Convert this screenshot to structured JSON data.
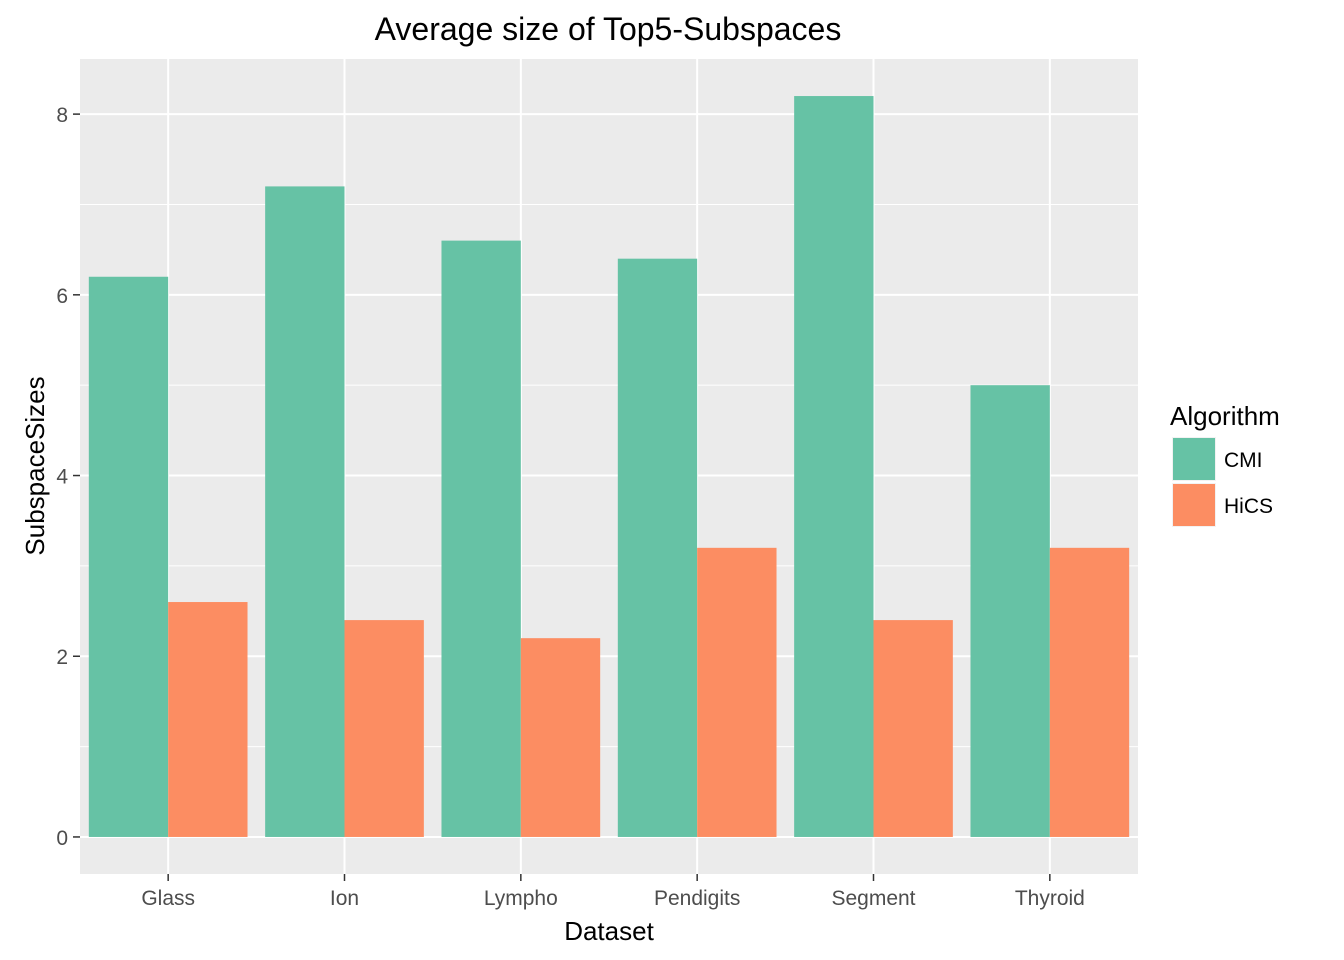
{
  "chart_data": {
    "type": "bar",
    "title": "Average size of Top5-Subspaces",
    "xlabel": "Dataset",
    "ylabel": "SubspaceSizes",
    "categories": [
      "Glass",
      "Ion",
      "Lympho",
      "Pendigits",
      "Segment",
      "Thyroid"
    ],
    "series": [
      {
        "name": "CMI",
        "color": "#66c2a5",
        "values": [
          6.2,
          7.2,
          6.6,
          6.4,
          8.2,
          5.0
        ]
      },
      {
        "name": "HiCS",
        "color": "#fc8d62",
        "values": [
          2.6,
          2.4,
          2.2,
          3.2,
          2.4,
          3.2
        ]
      }
    ],
    "ylim": [
      -0.41,
      8.61
    ],
    "yticks": [
      0,
      2,
      4,
      6,
      8
    ],
    "ytick_labels": [
      "0",
      "2",
      "4",
      "6",
      "8"
    ],
    "grid": true,
    "panel_background": "#ebebeb",
    "legend": {
      "title": "Algorithm",
      "position": "right"
    }
  }
}
